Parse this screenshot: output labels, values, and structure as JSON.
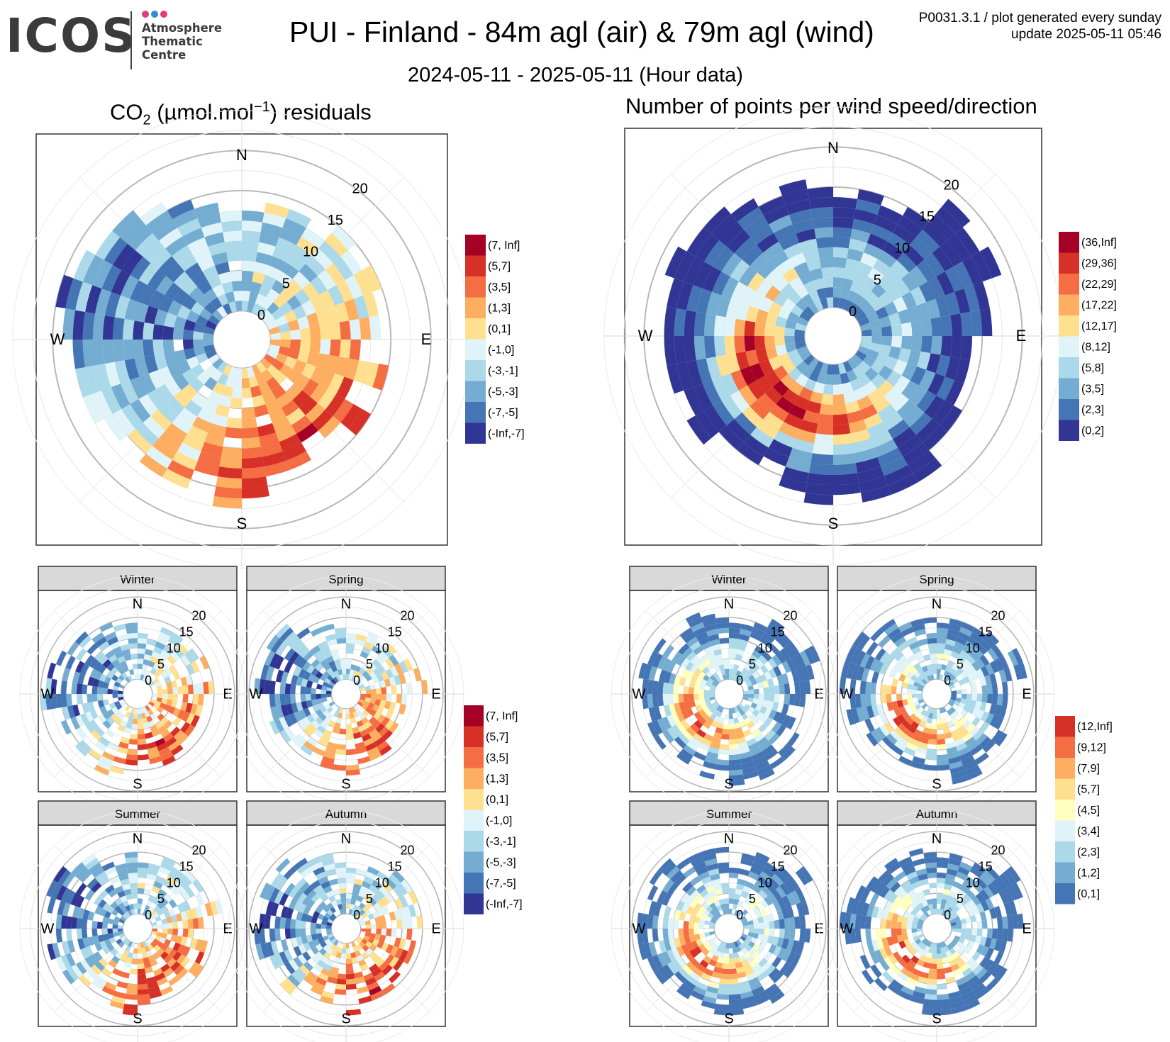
{
  "header": {
    "logo_text": "ICOS",
    "logo_sub": [
      "Atmosphere",
      "Thematic",
      "Centre"
    ],
    "logo_dot_colors": [
      "#e23c7a",
      "#2a8fd6",
      "#e23c7a"
    ],
    "title": "PUI - Finland - 84m agl (air) & 79m agl (wind)",
    "subtitle": "2024-05-11 - 2025-05-11 (Hour data)",
    "meta_line1": "P0031.3.1 / plot generated every sunday",
    "meta_line2": "update  2025-05-11 05:46"
  },
  "left_panel": {
    "title_pre": "CO",
    "title_sub": "2",
    "title_mid": " (µmol.mol",
    "title_sup": "−1",
    "title_post": ") residuals"
  },
  "right_panel": {
    "title": "Number of points per wind speed/direction"
  },
  "compass": {
    "N": "N",
    "E": "E",
    "S": "S",
    "W": "W"
  },
  "season_labels": [
    "Winter",
    "Spring",
    "Summer",
    "Autumn"
  ],
  "chart_data": [
    {
      "id": "co2_residuals_all",
      "type": "heatmap",
      "coordinate_system": "polar (wind direction vs wind speed)",
      "radial_ticks": [
        0,
        5,
        10,
        15,
        20
      ],
      "theta_labels": [
        "N",
        "E",
        "S",
        "W"
      ],
      "legend": {
        "labels": [
          "(7, Inf]",
          "(5,7]",
          "(3,5]",
          "(1,3]",
          "(0,1]",
          "(-1,0]",
          "(-3,-1]",
          "(-5,-3]",
          "(-7,-5]",
          "(-Inf,-7]"
        ],
        "colors": [
          "#a50026",
          "#d73027",
          "#f46d43",
          "#fdae61",
          "#fee090",
          "#e0f3f8",
          "#abd9e9",
          "#74add1",
          "#4575b4",
          "#313695"
        ],
        "placement": "right"
      },
      "pattern_note": "positive residuals (orange/red) concentrated S and SE; negative residuals (blue) W and NW"
    },
    {
      "id": "wind_counts_all",
      "type": "heatmap",
      "coordinate_system": "polar (wind direction vs wind speed)",
      "radial_ticks": [
        0,
        5,
        10,
        15,
        20
      ],
      "theta_labels": [
        "N",
        "E",
        "S",
        "W"
      ],
      "legend": {
        "labels": [
          "(36,Inf]",
          "(29,36]",
          "(22,29]",
          "(17,22]",
          "(12,17]",
          "(8,12]",
          "(5,8]",
          "(3,5]",
          "(2,3]",
          "(0,2]"
        ],
        "colors": [
          "#a50026",
          "#d73027",
          "#f46d43",
          "#fdae61",
          "#fee090",
          "#e0f3f8",
          "#abd9e9",
          "#74add1",
          "#4575b4",
          "#313695"
        ],
        "placement": "right"
      },
      "pattern_note": "most points W to S at moderate speeds; sparse (dark blue) at outer ring"
    },
    {
      "id": "co2_residuals_seasonal",
      "type": "heatmap",
      "facets": [
        "Winter",
        "Spring",
        "Summer",
        "Autumn"
      ],
      "radial_ticks": [
        0,
        5,
        10,
        15,
        20
      ],
      "legend": {
        "labels": [
          "(7, Inf]",
          "(5,7]",
          "(3,5]",
          "(1,3]",
          "(0,1]",
          "(-1,0]",
          "(-3,-1]",
          "(-5,-3]",
          "(-7,-5]",
          "(-Inf,-7]"
        ],
        "colors": [
          "#a50026",
          "#d73027",
          "#f46d43",
          "#fdae61",
          "#fee090",
          "#e0f3f8",
          "#abd9e9",
          "#74add1",
          "#4575b4",
          "#313695"
        ],
        "placement": "right"
      }
    },
    {
      "id": "wind_counts_seasonal",
      "type": "heatmap",
      "facets": [
        "Winter",
        "Spring",
        "Summer",
        "Autumn"
      ],
      "radial_ticks": [
        0,
        5,
        10,
        15,
        20
      ],
      "legend": {
        "labels": [
          "(12,Inf]",
          "(9,12]",
          "(7,9]",
          "(5,7]",
          "(4,5]",
          "(3,4]",
          "(2,3]",
          "(1,2]",
          "(0,1]"
        ],
        "colors": [
          "#d73027",
          "#f46d43",
          "#fdae61",
          "#fee090",
          "#ffffbf",
          "#e0f3f8",
          "#abd9e9",
          "#74add1",
          "#4575b4"
        ],
        "placement": "right"
      }
    }
  ]
}
